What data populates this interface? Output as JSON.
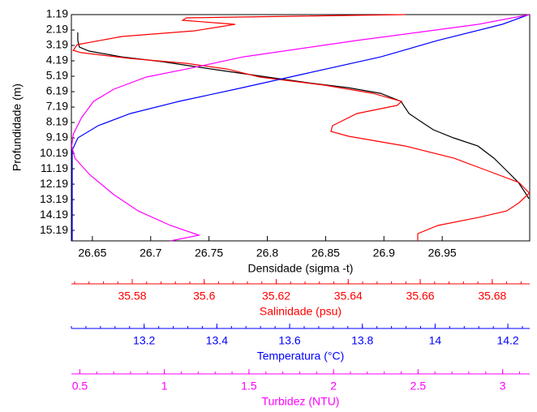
{
  "chart_data": {
    "type": "line",
    "ylabel": "Profundidade (m)",
    "ylim": [
      1.19,
      15.87
    ],
    "y_inverted": true,
    "yticks": [
      1.19,
      2.19,
      3.19,
      4.19,
      5.19,
      6.19,
      7.19,
      8.19,
      9.19,
      10.19,
      11.19,
      12.19,
      13.19,
      14.19,
      15.19
    ],
    "x_axes": [
      {
        "label": "Densidade (sigma -t)",
        "color": "#000000",
        "xlim": [
          26.632,
          27.025
        ],
        "xticks": [
          26.65,
          26.7,
          26.75,
          26.8,
          26.85,
          26.9,
          26.95
        ]
      },
      {
        "label": "Salinidade (psu)",
        "color": "#ff0000",
        "xlim": [
          35.5631,
          35.6904
        ],
        "xticks": [
          35.58,
          35.6,
          35.62,
          35.64,
          35.66,
          35.68
        ]
      },
      {
        "label": "Temperatura (°C)",
        "color": "#0000ff",
        "xlim": [
          13.0,
          14.26
        ],
        "xticks": [
          13.2,
          13.4,
          13.6,
          13.8,
          14,
          14.2
        ]
      },
      {
        "label": "Turbidez (NTU)",
        "color": "#ff00ff",
        "xlim": [
          0.45,
          3.16
        ],
        "xticks": [
          0.5,
          1,
          1.5,
          2,
          2.5,
          3
        ]
      }
    ],
    "series": [
      {
        "color": "#000000",
        "axis": 0,
        "x": [
          26.6375,
          26.6375,
          26.6389,
          26.6472,
          26.675,
          26.7097,
          26.7375,
          26.7653,
          26.8,
          26.8347,
          26.8694,
          26.8972,
          26.9146,
          26.9215,
          26.9319,
          26.9424,
          26.9597,
          26.9806,
          26.9944,
          27.0049,
          27.0153,
          27.0222,
          27.0243
        ],
        "y": [
          2.35,
          2.87,
          3.3,
          3.56,
          3.93,
          4.24,
          4.56,
          4.87,
          5.24,
          5.61,
          5.93,
          6.3,
          6.82,
          7.61,
          8.14,
          8.66,
          9.19,
          9.72,
          10.51,
          11.29,
          12.08,
          12.87,
          13.14
        ]
      },
      {
        "color": "#ff0000",
        "axis": 1,
        "x": [
          35.6559,
          35.5951,
          35.594,
          35.6086,
          35.5973,
          35.5771,
          35.5647,
          35.5636,
          35.5658,
          35.5793,
          35.5951,
          35.6063,
          35.6154,
          35.6334,
          35.6469,
          35.6548,
          35.6536,
          35.6424,
          35.6356,
          35.6352,
          35.6401,
          35.6559,
          35.6694,
          35.6784,
          35.6874,
          35.6903,
          35.6874,
          35.684,
          35.6762,
          35.6649,
          35.6593,
          35.6593
        ],
        "y": [
          1.19,
          1.4,
          1.56,
          1.82,
          2.24,
          2.61,
          3.14,
          3.51,
          3.66,
          4.03,
          4.35,
          4.72,
          5.24,
          5.77,
          6.3,
          6.82,
          7.08,
          7.61,
          8.4,
          8.77,
          9.08,
          9.72,
          10.51,
          11.29,
          12.08,
          12.77,
          13.4,
          13.93,
          14.35,
          14.87,
          15.4,
          15.87
        ]
      },
      {
        "color": "#0000ff",
        "axis": 2,
        "x": [
          14.2578,
          14.1844,
          14.0067,
          13.8511,
          13.6511,
          13.4511,
          13.2956,
          13.1622,
          13.0733,
          13.0178,
          13.0022,
          13.0022
        ],
        "y": [
          1.19,
          1.82,
          2.87,
          3.93,
          4.98,
          6.03,
          6.82,
          7.61,
          8.4,
          9.19,
          9.98,
          15.87
        ]
      },
      {
        "color": "#ff00ff",
        "axis": 3,
        "x": [
          3.158,
          2.856,
          2.138,
          1.467,
          1.132,
          0.893,
          0.701,
          0.581,
          0.51,
          0.462,
          0.452,
          0.471,
          0.557,
          0.701,
          0.845,
          1.036,
          1.204,
          1.036
        ],
        "y": [
          1.19,
          1.82,
          2.87,
          3.93,
          4.72,
          5.24,
          6.03,
          6.82,
          7.88,
          8.93,
          9.72,
          10.51,
          11.56,
          12.87,
          13.93,
          14.87,
          15.5,
          15.87
        ]
      }
    ]
  }
}
